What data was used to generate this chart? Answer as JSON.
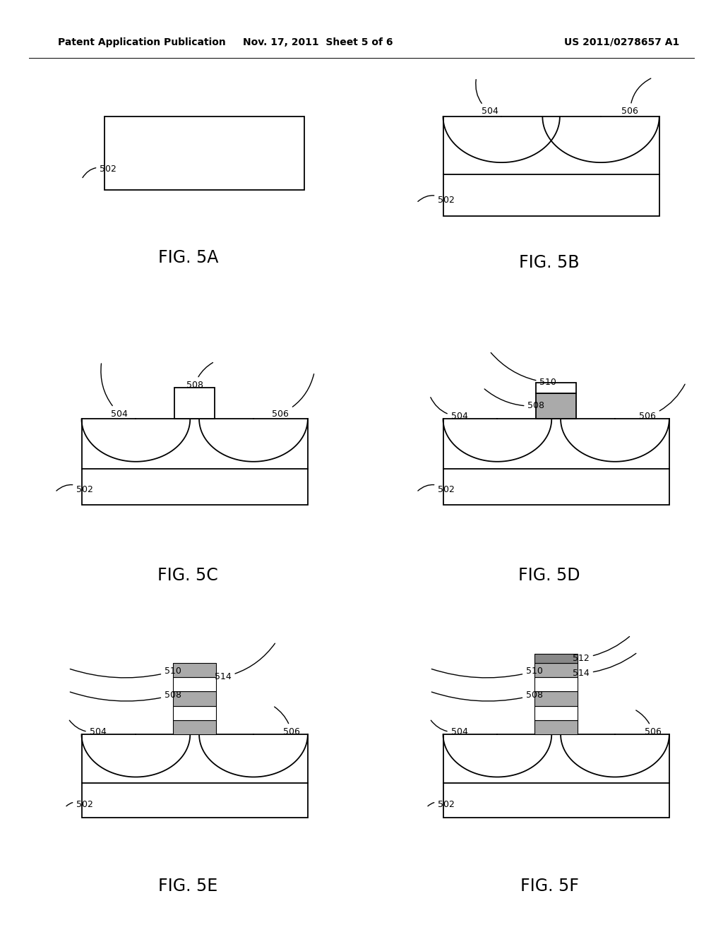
{
  "header_left": "Patent Application Publication",
  "header_mid": "Nov. 17, 2011  Sheet 5 of 6",
  "header_right": "US 2011/0278657 A1",
  "background": "#ffffff",
  "line_color": "#000000",
  "lw": 1.3,
  "label_fs": 9,
  "fig_label_fs": 17
}
